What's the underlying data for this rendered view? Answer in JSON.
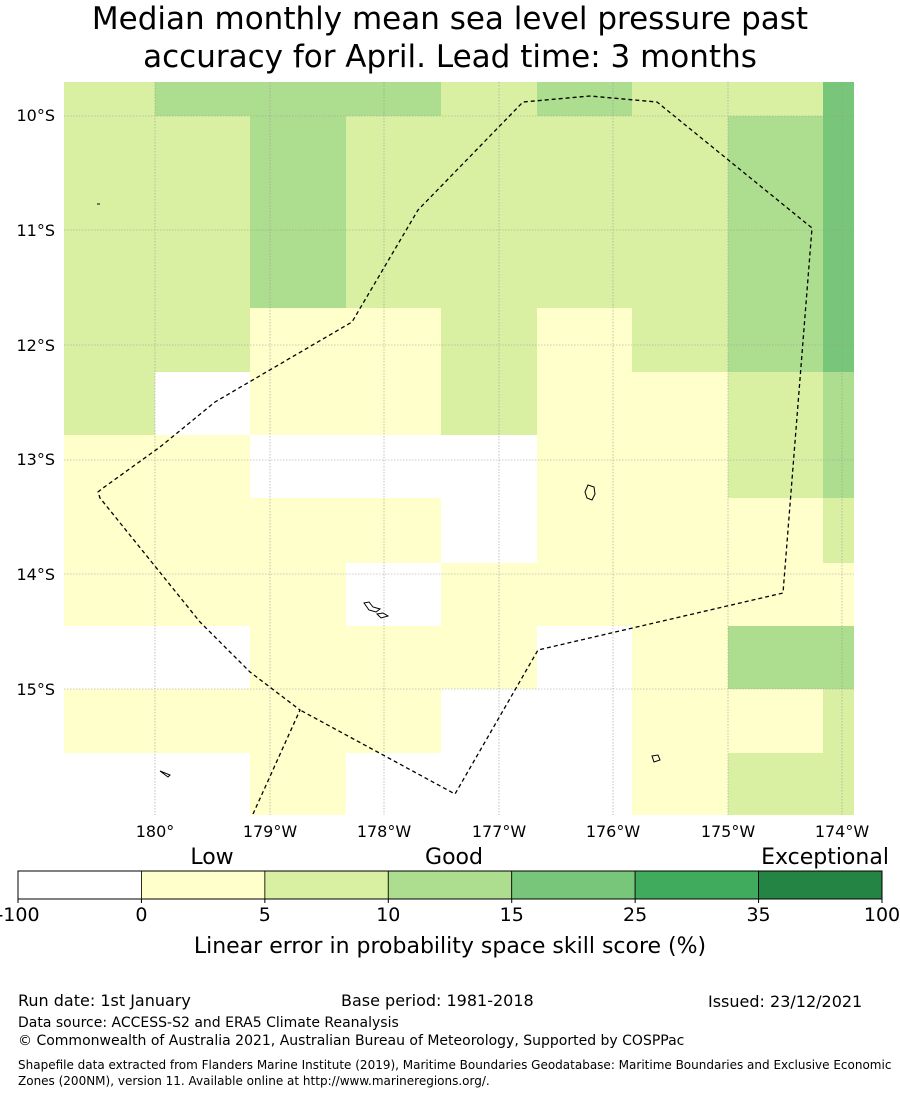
{
  "title": {
    "line1": "Median monthly mean sea level pressure past",
    "line2": "accuracy for April. Lead time: 3 months"
  },
  "map": {
    "lat_labels": [
      "10°S",
      "11°S",
      "12°S",
      "13°S",
      "14°S",
      "15°S"
    ],
    "lon_labels": [
      "180°",
      "179°W",
      "178°W",
      "177°W",
      "176°W",
      "175°W",
      "174°W"
    ]
  },
  "colorbar": {
    "categories": [
      "Low",
      "Good",
      "Exceptional"
    ],
    "ticks": [
      "-100",
      "0",
      "5",
      "10",
      "15",
      "25",
      "35",
      "100"
    ],
    "colors": [
      "#ffffff",
      "#ffffcc",
      "#d9f0a3",
      "#addd8e",
      "#78c679",
      "#41ab5d",
      "#238443"
    ],
    "label": "Linear error in probability space skill score (%)"
  },
  "footer": {
    "run_date": "Run date: 1st January",
    "base_period": "Base period: 1981-2018",
    "issued": "Issued: 23/12/2021",
    "data_source": "Data source: ACCESS-S2 and ERA5 Climate Reanalysis",
    "copyright": "© Commonwealth of Australia 2021, Australian Bureau of Meteorology, Supported by COSPPac",
    "shapefile": "Shapefile data extracted from Flanders Marine Institute (2019), Maritime Boundaries Geodatabase: Maritime Boundaries and Exclusive Economic Zones (200NM), version 11. Available online at http://www.marineregions.org/."
  }
}
